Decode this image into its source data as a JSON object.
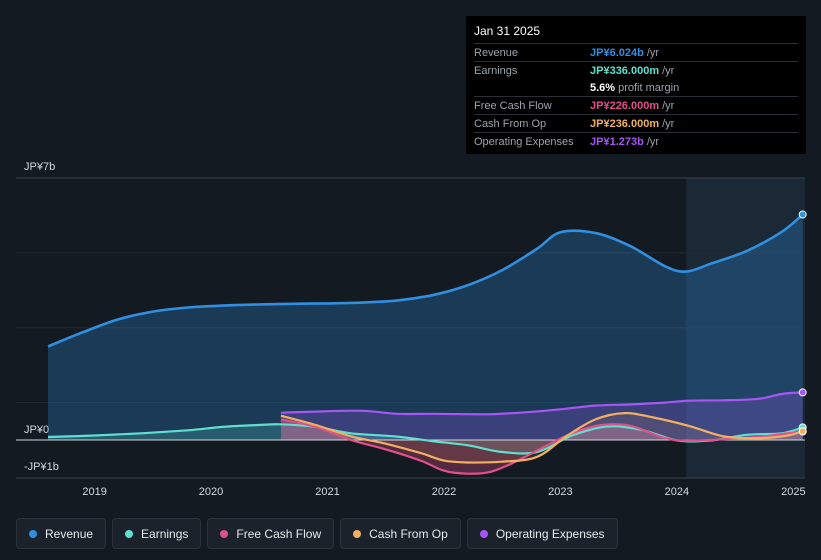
{
  "tooltip": {
    "date": "Jan 31 2025",
    "rows": [
      {
        "label": "Revenue",
        "value": "JP¥6.024b",
        "unit": "/yr",
        "color": "#2f8fe0"
      },
      {
        "label": "Earnings",
        "value": "JP¥336.000m",
        "unit": "/yr",
        "color": "#5ee0d0"
      },
      {
        "label": "",
        "value": "5.6%",
        "unit": "profit margin",
        "color": "#ffffff"
      },
      {
        "label": "Free Cash Flow",
        "value": "JP¥226.000m",
        "unit": "/yr",
        "color": "#e0508a"
      },
      {
        "label": "Cash From Op",
        "value": "JP¥236.000m",
        "unit": "/yr",
        "color": "#f0b060"
      },
      {
        "label": "Operating Expenses",
        "value": "JP¥1.273b",
        "unit": "/yr",
        "color": "#a855f7"
      }
    ]
  },
  "legend": [
    {
      "label": "Revenue",
      "color": "#2f8fe0"
    },
    {
      "label": "Earnings",
      "color": "#5ee0d0"
    },
    {
      "label": "Free Cash Flow",
      "color": "#e0508a"
    },
    {
      "label": "Cash From Op",
      "color": "#f0b060"
    },
    {
      "label": "Operating Expenses",
      "color": "#a855f7"
    }
  ],
  "chart_data": {
    "type": "line",
    "title": "",
    "xlabel": "",
    "ylabel": "",
    "units": "JP¥ billions",
    "ylim": [
      -1,
      7
    ],
    "y_tick_labels": [
      "JP¥7b",
      "JP¥0",
      "-JP¥1b"
    ],
    "xlim": [
      2018.6,
      2025.1
    ],
    "x_tick_labels": [
      "2019",
      "2020",
      "2021",
      "2022",
      "2023",
      "2024",
      "2025"
    ],
    "x_ticks": [
      2019,
      2020,
      2021,
      2022,
      2023,
      2024,
      2025
    ],
    "forecast_shade_start": 2024.08,
    "series": [
      {
        "name": "Revenue",
        "color": "#2f8fe0",
        "x": [
          2018.6,
          2018.9,
          2019.2,
          2019.5,
          2019.8,
          2020.1,
          2020.4,
          2020.7,
          2021.0,
          2021.3,
          2021.6,
          2021.9,
          2022.2,
          2022.5,
          2022.8,
          2023.0,
          2023.3,
          2023.6,
          2023.9,
          2024.08,
          2024.3,
          2024.6,
          2024.9,
          2025.08
        ],
        "values": [
          2.5,
          2.88,
          3.22,
          3.43,
          3.54,
          3.59,
          3.62,
          3.64,
          3.65,
          3.67,
          3.73,
          3.87,
          4.13,
          4.54,
          5.11,
          5.55,
          5.53,
          5.18,
          4.64,
          4.5,
          4.72,
          5.05,
          5.56,
          6.024
        ]
      },
      {
        "name": "Earnings",
        "color": "#5ee0d0",
        "x": [
          2018.6,
          2019.0,
          2019.4,
          2019.8,
          2020.1,
          2020.4,
          2020.6,
          2020.9,
          2021.2,
          2021.6,
          2021.9,
          2022.2,
          2022.5,
          2022.8,
          2023.1,
          2023.4,
          2023.7,
          2024.0,
          2024.3,
          2024.6,
          2024.9,
          2025.08
        ],
        "values": [
          0.08,
          0.12,
          0.18,
          0.26,
          0.35,
          0.4,
          0.42,
          0.35,
          0.18,
          0.09,
          -0.03,
          -0.14,
          -0.32,
          -0.32,
          0.12,
          0.36,
          0.27,
          -0.01,
          -0.01,
          0.14,
          0.18,
          0.336
        ]
      },
      {
        "name": "Free Cash Flow",
        "color": "#e0508a",
        "x": [
          2020.6,
          2020.9,
          2021.2,
          2021.5,
          2021.8,
          2022.0,
          2022.2,
          2022.4,
          2022.6,
          2022.85,
          2023.1,
          2023.35,
          2023.6,
          2023.9,
          2024.1,
          2024.4,
          2024.7,
          2024.95,
          2025.08
        ],
        "values": [
          0.55,
          0.35,
          0.0,
          -0.25,
          -0.55,
          -0.82,
          -0.9,
          -0.85,
          -0.6,
          -0.2,
          0.18,
          0.4,
          0.38,
          0.05,
          -0.02,
          0.02,
          0.08,
          0.18,
          0.226
        ]
      },
      {
        "name": "Cash From Op",
        "color": "#f0b060",
        "x": [
          2020.6,
          2020.9,
          2021.2,
          2021.5,
          2021.8,
          2022.0,
          2022.2,
          2022.5,
          2022.8,
          2023.05,
          2023.3,
          2023.55,
          2023.8,
          2024.1,
          2024.4,
          2024.7,
          2024.95,
          2025.08
        ],
        "values": [
          0.65,
          0.4,
          0.1,
          -0.1,
          -0.35,
          -0.55,
          -0.6,
          -0.58,
          -0.45,
          0.1,
          0.55,
          0.72,
          0.6,
          0.38,
          0.1,
          0.05,
          0.12,
          0.236
        ]
      },
      {
        "name": "Operating Expenses",
        "color": "#a855f7",
        "x": [
          2020.6,
          2020.9,
          2021.3,
          2021.6,
          2021.9,
          2022.2,
          2022.4,
          2022.7,
          2023.0,
          2023.3,
          2023.6,
          2023.9,
          2024.1,
          2024.4,
          2024.7,
          2024.9,
          2025.08
        ],
        "values": [
          0.73,
          0.76,
          0.78,
          0.7,
          0.7,
          0.69,
          0.69,
          0.74,
          0.82,
          0.92,
          0.95,
          1.0,
          1.05,
          1.06,
          1.1,
          1.23,
          1.273
        ]
      }
    ]
  }
}
